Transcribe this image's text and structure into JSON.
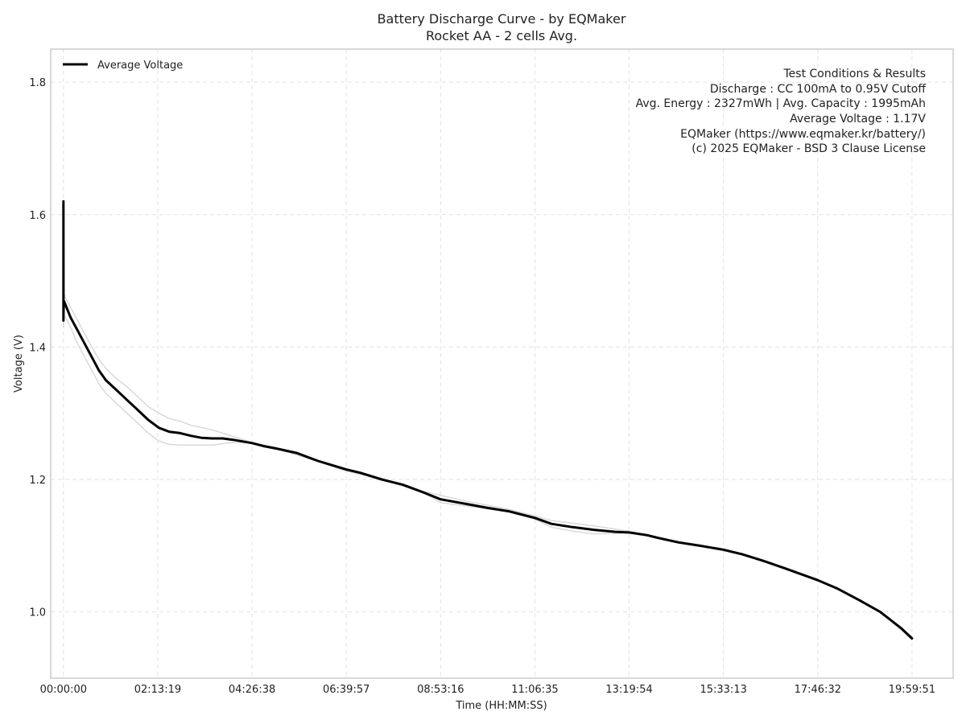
{
  "chart_data": {
    "type": "line",
    "title": "Battery Discharge Curve - by EQMaker",
    "subtitle": "Rocket AA - 2 cells Avg.",
    "xlabel": "Time (HH:MM:SS)",
    "ylabel": "Voltage (V)",
    "x_unit": "HH:MM:SS",
    "xlim": [
      "-00:18:00",
      "20:58:00"
    ],
    "ylim": [
      0.9,
      1.85
    ],
    "x_ticks": [
      "00:00:00",
      "02:13:19",
      "04:26:38",
      "06:39:57",
      "08:53:16",
      "11:06:35",
      "13:19:54",
      "15:33:13",
      "17:46:32",
      "19:59:51"
    ],
    "y_ticks": [
      1.0,
      1.2,
      1.4,
      1.6,
      1.8
    ],
    "y_tick_labels": [
      "1.0",
      "1.2",
      "1.4",
      "1.6",
      "1.8"
    ],
    "grid": true,
    "legend_position": "top-left",
    "series": [
      {
        "name": "Average Voltage",
        "color": "#000000",
        "points": [
          [
            "00:00:00",
            1.44
          ],
          [
            "00:00:01",
            1.62
          ],
          [
            "00:00:03",
            1.45
          ],
          [
            "00:00:30",
            1.47
          ],
          [
            "00:10:00",
            1.445
          ],
          [
            "00:20:00",
            1.425
          ],
          [
            "00:30:00",
            1.405
          ],
          [
            "00:40:00",
            1.385
          ],
          [
            "00:50:00",
            1.365
          ],
          [
            "01:00:00",
            1.35
          ],
          [
            "01:15:00",
            1.335
          ],
          [
            "01:30:00",
            1.32
          ],
          [
            "01:45:00",
            1.305
          ],
          [
            "02:00:00",
            1.29
          ],
          [
            "02:15:00",
            1.278
          ],
          [
            "02:30:00",
            1.272
          ],
          [
            "02:45:00",
            1.27
          ],
          [
            "03:00:00",
            1.266
          ],
          [
            "03:15:00",
            1.263
          ],
          [
            "03:30:00",
            1.262
          ],
          [
            "03:45:00",
            1.262
          ],
          [
            "04:00:00",
            1.26
          ],
          [
            "04:26:38",
            1.255
          ],
          [
            "04:45:00",
            1.25
          ],
          [
            "05:00:00",
            1.247
          ],
          [
            "05:30:00",
            1.24
          ],
          [
            "06:00:00",
            1.228
          ],
          [
            "06:39:57",
            1.215
          ],
          [
            "07:00:00",
            1.21
          ],
          [
            "07:30:00",
            1.2
          ],
          [
            "08:00:00",
            1.192
          ],
          [
            "08:30:00",
            1.18
          ],
          [
            "08:53:16",
            1.17
          ],
          [
            "09:30:00",
            1.163
          ],
          [
            "10:00:00",
            1.157
          ],
          [
            "10:30:00",
            1.152
          ],
          [
            "11:06:35",
            1.142
          ],
          [
            "11:30:00",
            1.133
          ],
          [
            "12:00:00",
            1.128
          ],
          [
            "12:30:00",
            1.124
          ],
          [
            "13:00:00",
            1.121
          ],
          [
            "13:19:54",
            1.12
          ],
          [
            "13:45:00",
            1.116
          ],
          [
            "14:00:00",
            1.112
          ],
          [
            "14:30:00",
            1.105
          ],
          [
            "15:00:00",
            1.1
          ],
          [
            "15:33:13",
            1.094
          ],
          [
            "16:00:00",
            1.087
          ],
          [
            "16:30:00",
            1.077
          ],
          [
            "17:00:00",
            1.066
          ],
          [
            "17:46:32",
            1.048
          ],
          [
            "18:15:00",
            1.035
          ],
          [
            "18:45:00",
            1.018
          ],
          [
            "19:15:00",
            1.0
          ],
          [
            "19:45:00",
            0.975
          ],
          [
            "19:59:51",
            0.96
          ]
        ]
      },
      {
        "name": "",
        "color": "#d9d9d9",
        "points": [
          [
            "00:00:00",
            1.43
          ],
          [
            "00:00:30",
            1.45
          ],
          [
            "00:10:00",
            1.43
          ],
          [
            "00:20:00",
            1.405
          ],
          [
            "00:30:00",
            1.385
          ],
          [
            "00:40:00",
            1.365
          ],
          [
            "00:50:00",
            1.345
          ],
          [
            "01:00:00",
            1.33
          ],
          [
            "01:15:00",
            1.315
          ],
          [
            "01:30:00",
            1.3
          ],
          [
            "01:45:00",
            1.285
          ],
          [
            "02:00:00",
            1.27
          ],
          [
            "02:15:00",
            1.258
          ],
          [
            "02:30:00",
            1.253
          ],
          [
            "02:45:00",
            1.252
          ],
          [
            "03:00:00",
            1.252
          ],
          [
            "03:30:00",
            1.252
          ],
          [
            "04:00:00",
            1.256
          ],
          [
            "04:26:38",
            1.255
          ],
          [
            "05:00:00",
            1.247
          ],
          [
            "06:00:00",
            1.227
          ],
          [
            "06:39:57",
            1.213
          ],
          [
            "07:30:00",
            1.2
          ],
          [
            "08:30:00",
            1.18
          ],
          [
            "08:53:16",
            1.165
          ],
          [
            "09:30:00",
            1.16
          ],
          [
            "10:30:00",
            1.151
          ],
          [
            "11:06:35",
            1.14
          ],
          [
            "11:30:00",
            1.128
          ],
          [
            "12:00:00",
            1.122
          ],
          [
            "12:30:00",
            1.118
          ],
          [
            "13:19:54",
            1.119
          ],
          [
            "14:00:00",
            1.112
          ],
          [
            "15:00:00",
            1.1
          ],
          [
            "16:00:00",
            1.086
          ],
          [
            "17:00:00",
            1.066
          ],
          [
            "18:15:00",
            1.035
          ],
          [
            "19:15:00",
            1.0
          ],
          [
            "19:59:51",
            0.962
          ]
        ]
      },
      {
        "name": "",
        "color": "#d9d9d9",
        "points": [
          [
            "00:00:00",
            1.45
          ],
          [
            "00:00:30",
            1.48
          ],
          [
            "00:10:00",
            1.46
          ],
          [
            "00:20:00",
            1.44
          ],
          [
            "00:30:00",
            1.42
          ],
          [
            "00:40:00",
            1.4
          ],
          [
            "00:50:00",
            1.382
          ],
          [
            "01:00:00",
            1.368
          ],
          [
            "01:15:00",
            1.352
          ],
          [
            "01:30:00",
            1.34
          ],
          [
            "01:45:00",
            1.325
          ],
          [
            "02:00:00",
            1.31
          ],
          [
            "02:15:00",
            1.3
          ],
          [
            "02:30:00",
            1.292
          ],
          [
            "02:45:00",
            1.288
          ],
          [
            "03:00:00",
            1.282
          ],
          [
            "03:30:00",
            1.275
          ],
          [
            "04:00:00",
            1.265
          ],
          [
            "04:26:38",
            1.256
          ],
          [
            "05:00:00",
            1.248
          ],
          [
            "06:00:00",
            1.229
          ],
          [
            "06:39:57",
            1.217
          ],
          [
            "07:30:00",
            1.202
          ],
          [
            "08:30:00",
            1.182
          ],
          [
            "08:53:16",
            1.176
          ],
          [
            "09:30:00",
            1.167
          ],
          [
            "10:30:00",
            1.155
          ],
          [
            "11:06:35",
            1.145
          ],
          [
            "11:30:00",
            1.138
          ],
          [
            "12:00:00",
            1.134
          ],
          [
            "12:30:00",
            1.13
          ],
          [
            "13:19:54",
            1.122
          ],
          [
            "14:00:00",
            1.112
          ],
          [
            "15:00:00",
            1.101
          ],
          [
            "16:00:00",
            1.088
          ],
          [
            "17:00:00",
            1.067
          ],
          [
            "18:15:00",
            1.036
          ],
          [
            "19:15:00",
            1.001
          ],
          [
            "19:59:51",
            0.958
          ]
        ]
      }
    ],
    "annotation_lines": [
      "Test Conditions & Results",
      "Discharge : CC 100mA to 0.95V Cutoff",
      "Avg. Energy : 2327mWh | Avg. Capacity : 1995mAh",
      "Average Voltage : 1.17V",
      "EQMaker (https://www.eqmaker.kr/battery/)",
      "(c) 2025 EQMaker - BSD 3 Clause License"
    ]
  }
}
